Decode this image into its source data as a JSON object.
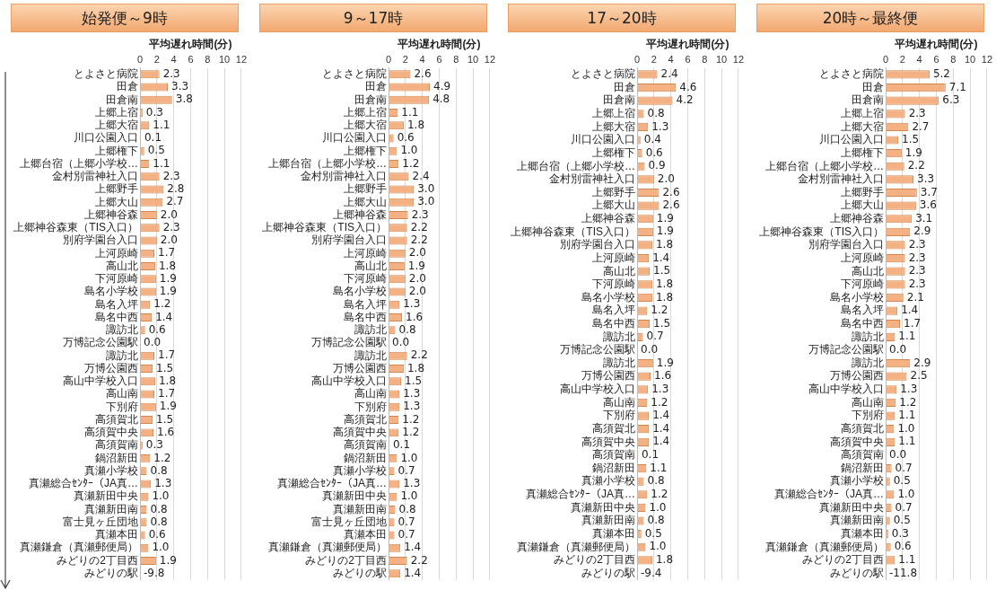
{
  "chart_data": [
    {
      "type": "bar",
      "orientation": "horizontal",
      "title": "始発便～9時",
      "xlabel": "平均遅れ時間(分)",
      "color": "#f4b183",
      "xlim": [
        0,
        12
      ],
      "xticks": [
        0,
        2,
        4,
        6,
        8,
        10,
        12
      ],
      "grid": "x",
      "categories": [
        "とよさと病院",
        "田倉",
        "田倉南",
        "上郷上宿",
        "上郷大宿",
        "川口公園入口",
        "上郷権下",
        "上郷台宿（上郷小学校…",
        "金村別雷神社入口",
        "上郷野手",
        "上郷大山",
        "上郷神谷森",
        "上郷神谷森東（TIS入口）",
        "別府学園台入口",
        "上河原崎",
        "高山北",
        "下河原崎",
        "島名小学校",
        "島名入坪",
        "島名中西",
        "諏訪北",
        "万博記念公園駅",
        "諏訪北",
        "万博公園西",
        "高山中学校入口",
        "高山南",
        "下別府",
        "高須賀北",
        "高須賀中央",
        "高須賀南",
        "鍋沼新田",
        "真瀬小学校",
        "真瀬総合ｾﾝﾀｰ（JA真…",
        "真瀬新田中央",
        "真瀬新田南",
        "富士見ヶ丘団地",
        "真瀬本田",
        "真瀬鎌倉（真瀬郵便局）",
        "みどりの2丁目西",
        "みどりの駅"
      ],
      "values": [
        2.3,
        3.3,
        3.8,
        0.3,
        1.1,
        0.1,
        0.5,
        1.1,
        2.3,
        2.8,
        2.7,
        2.0,
        2.3,
        2.0,
        1.7,
        1.8,
        1.9,
        1.9,
        1.2,
        1.4,
        0.6,
        0.0,
        1.7,
        1.5,
        1.8,
        1.7,
        1.9,
        1.5,
        1.6,
        0.3,
        1.2,
        0.8,
        1.3,
        1.0,
        0.8,
        0.8,
        0.6,
        1.0,
        1.9,
        null
      ],
      "value_labels": [
        "2.3",
        "3.3",
        "3.8",
        "0.3",
        "1.1",
        "0.1",
        "0.5",
        "1.1",
        "2.3",
        "2.8",
        "2.7",
        "2.0",
        "2.3",
        "2.0",
        "1.7",
        "1.8",
        "1.9",
        "1.9",
        "1.2",
        "1.4",
        "0.6",
        "0.0",
        "1.7",
        "1.5",
        "1.8",
        "1.7",
        "1.9",
        "1.5",
        "1.6",
        "0.3",
        "1.2",
        "0.8",
        "1.3",
        "1.0",
        "0.8",
        "0.8",
        "0.6",
        "1.0",
        "1.9",
        "-9.8"
      ]
    },
    {
      "type": "bar",
      "orientation": "horizontal",
      "title": "9～17時",
      "xlabel": "平均遅れ時間(分)",
      "color": "#f4b183",
      "xlim": [
        0,
        12
      ],
      "xticks": [
        0,
        2,
        4,
        6,
        8,
        10,
        12
      ],
      "grid": "x",
      "categories": [
        "とよさと病院",
        "田倉",
        "田倉南",
        "上郷上宿",
        "上郷大宿",
        "川口公園入口",
        "上郷権下",
        "上郷台宿（上郷小学校…",
        "金村別雷神社入口",
        "上郷野手",
        "上郷大山",
        "上郷神谷森",
        "上郷神谷森東（TIS入口）",
        "別府学園台入口",
        "上河原崎",
        "高山北",
        "下河原崎",
        "島名小学校",
        "島名入坪",
        "島名中西",
        "諏訪北",
        "万博記念公園駅",
        "諏訪北",
        "万博公園西",
        "高山中学校入口",
        "高山南",
        "下別府",
        "高須賀北",
        "高須賀中央",
        "高須賀南",
        "鍋沼新田",
        "真瀬小学校",
        "真瀬総合ｾﾝﾀｰ（JA真…",
        "真瀬新田中央",
        "真瀬新田南",
        "富士見ヶ丘団地",
        "真瀬本田",
        "真瀬鎌倉（真瀬郵便局）",
        "みどりの2丁目西",
        "みどりの駅"
      ],
      "values": [
        2.6,
        4.9,
        4.8,
        1.1,
        1.8,
        0.6,
        1.0,
        1.2,
        2.4,
        3.0,
        3.0,
        2.3,
        2.2,
        2.2,
        2.0,
        1.9,
        2.0,
        2.0,
        1.3,
        1.6,
        0.8,
        0.0,
        2.2,
        1.8,
        1.5,
        1.3,
        1.3,
        1.2,
        1.2,
        0.1,
        1.0,
        0.7,
        1.3,
        1.0,
        0.8,
        0.7,
        0.7,
        1.4,
        2.2,
        1.4
      ],
      "value_labels": [
        "2.6",
        "4.9",
        "4.8",
        "1.1",
        "1.8",
        "0.6",
        "1.0",
        "1.2",
        "2.4",
        "3.0",
        "3.0",
        "2.3",
        "2.2",
        "2.2",
        "2.0",
        "1.9",
        "2.0",
        "2.0",
        "1.3",
        "1.6",
        "0.8",
        "0.0",
        "2.2",
        "1.8",
        "1.5",
        "1.3",
        "1.3",
        "1.2",
        "1.2",
        "0.1",
        "1.0",
        "0.7",
        "1.3",
        "1.0",
        "0.8",
        "0.7",
        "0.7",
        "1.4",
        "2.2",
        "1.4"
      ]
    },
    {
      "type": "bar",
      "orientation": "horizontal",
      "title": "17～20時",
      "xlabel": "平均遅れ時間(分)",
      "color": "#f4b183",
      "xlim": [
        0,
        12
      ],
      "xticks": [
        0,
        2,
        4,
        6,
        8,
        10,
        12
      ],
      "grid": "x",
      "categories": [
        "とよさと病院",
        "田倉",
        "田倉南",
        "上郷上宿",
        "上郷大宿",
        "川口公園入口",
        "上郷権下",
        "上郷台宿（上郷小学校…",
        "金村別雷神社入口",
        "上郷野手",
        "上郷大山",
        "上郷神谷森",
        "上郷神谷森東（TIS入口）",
        "別府学園台入口",
        "上河原崎",
        "高山北",
        "下河原崎",
        "島名小学校",
        "島名入坪",
        "島名中西",
        "諏訪北",
        "万博記念公園駅",
        "諏訪北",
        "万博公園西",
        "高山中学校入口",
        "高山南",
        "下別府",
        "高須賀北",
        "高須賀中央",
        "高須賀南",
        "鍋沼新田",
        "真瀬小学校",
        "真瀬総合ｾﾝﾀｰ（JA真…",
        "真瀬新田中央",
        "真瀬新田南",
        "真瀬本田",
        "真瀬鎌倉（真瀬郵便局）",
        "みどりの2丁目西",
        "みどりの駅"
      ],
      "values": [
        2.4,
        4.6,
        4.2,
        0.8,
        1.3,
        0.4,
        0.6,
        0.9,
        2.0,
        2.6,
        2.6,
        1.9,
        1.9,
        1.8,
        1.4,
        1.5,
        1.8,
        1.8,
        1.2,
        1.5,
        0.7,
        0.0,
        1.9,
        1.6,
        1.3,
        1.2,
        1.4,
        1.4,
        1.4,
        0.1,
        1.1,
        0.8,
        1.2,
        1.0,
        0.8,
        0.5,
        1.0,
        1.8,
        null
      ],
      "value_labels": [
        "2.4",
        "4.6",
        "4.2",
        "0.8",
        "1.3",
        "0.4",
        "0.6",
        "0.9",
        "2.0",
        "2.6",
        "2.6",
        "1.9",
        "1.9",
        "1.8",
        "1.4",
        "1.5",
        "1.8",
        "1.8",
        "1.2",
        "1.5",
        "0.7",
        "0.0",
        "1.9",
        "1.6",
        "1.3",
        "1.2",
        "1.4",
        "1.4",
        "1.4",
        "0.1",
        "1.1",
        "0.8",
        "1.2",
        "1.0",
        "0.8",
        "0.5",
        "1.0",
        "1.8",
        "-9.4"
      ]
    },
    {
      "type": "bar",
      "orientation": "horizontal",
      "title": "20時～最終便",
      "xlabel": "平均遅れ時間(分)",
      "color": "#f4b183",
      "xlim": [
        0,
        12
      ],
      "xticks": [
        0,
        2,
        4,
        6,
        8,
        10,
        12
      ],
      "grid": "x",
      "categories": [
        "とよさと病院",
        "田倉",
        "田倉南",
        "上郷上宿",
        "上郷大宿",
        "川口公園入口",
        "上郷権下",
        "上郷台宿（上郷小学校…",
        "金村別雷神社入口",
        "上郷野手",
        "上郷大山",
        "上郷神谷森",
        "上郷神谷森東（TIS入口）",
        "別府学園台入口",
        "上河原崎",
        "高山北",
        "下河原崎",
        "島名小学校",
        "島名入坪",
        "島名中西",
        "諏訪北",
        "万博記念公園駅",
        "諏訪北",
        "万博公園西",
        "高山中学校入口",
        "高山南",
        "下別府",
        "高須賀北",
        "高須賀中央",
        "高須賀南",
        "鍋沼新田",
        "真瀬小学校",
        "真瀬総合ｾﾝﾀｰ（JA真…",
        "真瀬新田中央",
        "真瀬新田南",
        "真瀬本田",
        "真瀬鎌倉（真瀬郵便局）",
        "みどりの2丁目西",
        "みどりの駅"
      ],
      "values": [
        5.2,
        7.1,
        6.3,
        2.3,
        2.7,
        1.5,
        1.9,
        2.2,
        3.3,
        3.7,
        3.6,
        3.1,
        2.9,
        2.3,
        2.3,
        2.3,
        2.3,
        2.1,
        1.4,
        1.7,
        1.1,
        0.0,
        2.9,
        2.5,
        1.3,
        1.2,
        1.1,
        1.0,
        1.1,
        0.0,
        0.7,
        0.5,
        1.0,
        0.7,
        0.5,
        0.3,
        0.6,
        1.1,
        null
      ],
      "value_labels": [
        "5.2",
        "7.1",
        "6.3",
        "2.3",
        "2.7",
        "1.5",
        "1.9",
        "2.2",
        "3.3",
        "3.7",
        "3.6",
        "3.1",
        "2.9",
        "2.3",
        "2.3",
        "2.3",
        "2.3",
        "2.1",
        "1.4",
        "1.7",
        "1.1",
        "0.0",
        "2.9",
        "2.5",
        "1.3",
        "1.2",
        "1.1",
        "1.0",
        "1.1",
        "0.0",
        "0.7",
        "0.5",
        "1.0",
        "0.7",
        "0.5",
        "0.3",
        "0.6",
        "1.1",
        "-11.8"
      ]
    }
  ]
}
